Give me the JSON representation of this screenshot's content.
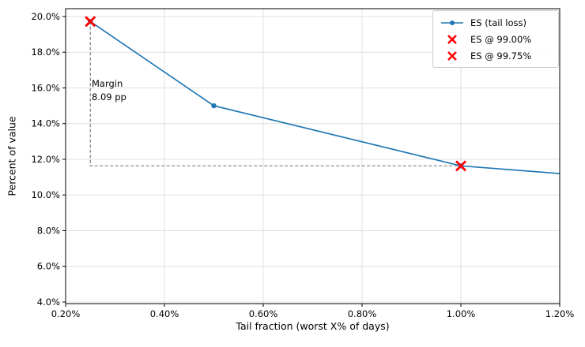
{
  "chart_data": {
    "type": "line",
    "title": "",
    "xlabel": "Tail fraction (worst X% of days)",
    "ylabel": "Percent of value",
    "xlim": [
      0.2,
      1.2
    ],
    "ylim": [
      3.91,
      20.44
    ],
    "grid": true,
    "legend_position": "upper right",
    "x_ticks": {
      "values": [
        0.2,
        0.4,
        0.6,
        0.8,
        1.0,
        1.2
      ],
      "labels": [
        "0.20%",
        "0.40%",
        "0.60%",
        "0.80%",
        "1.00%",
        "1.20%"
      ]
    },
    "y_ticks": {
      "values": [
        20,
        18,
        16,
        14,
        12,
        10,
        8,
        6,
        4
      ],
      "labels": [
        "20.0%",
        "18.0%",
        "16.0%",
        "14.0%",
        "12.0%",
        "10.0%",
        "8.0%",
        "6.0%",
        "4.0%"
      ]
    },
    "series": [
      {
        "name": "ES (tail loss)",
        "color": "#1f77b4",
        "marker": "circle",
        "points": [
          [
            0.25,
            19.72
          ],
          [
            0.5,
            15.0
          ],
          [
            1.0,
            11.63
          ],
          [
            1.2,
            11.2
          ]
        ],
        "marker_xs": [
          0.25,
          0.5,
          1.0
        ]
      }
    ],
    "highlight_points": [
      {
        "name": "ES @ 99.00%",
        "x": 1.0,
        "y": 11.63,
        "marker": "x",
        "color": "#ff0000"
      },
      {
        "name": "ES @ 99.75%",
        "x": 0.25,
        "y": 19.72,
        "marker": "x",
        "color": "#ff0000"
      }
    ],
    "annotation": {
      "lines": [
        "Margin",
        "8.09 pp"
      ]
    },
    "margin_guides": {
      "vertical_x": 0.25,
      "top_y": 19.72,
      "level_y": 11.63,
      "right_x": 1.0,
      "color": "#7f7f7f",
      "dash": "4 2.5"
    },
    "style": {
      "grid_color": "#e0e0e0",
      "axis_color": "#000000",
      "legend_border_color": "#cccccc",
      "background": "#ffffff"
    }
  }
}
